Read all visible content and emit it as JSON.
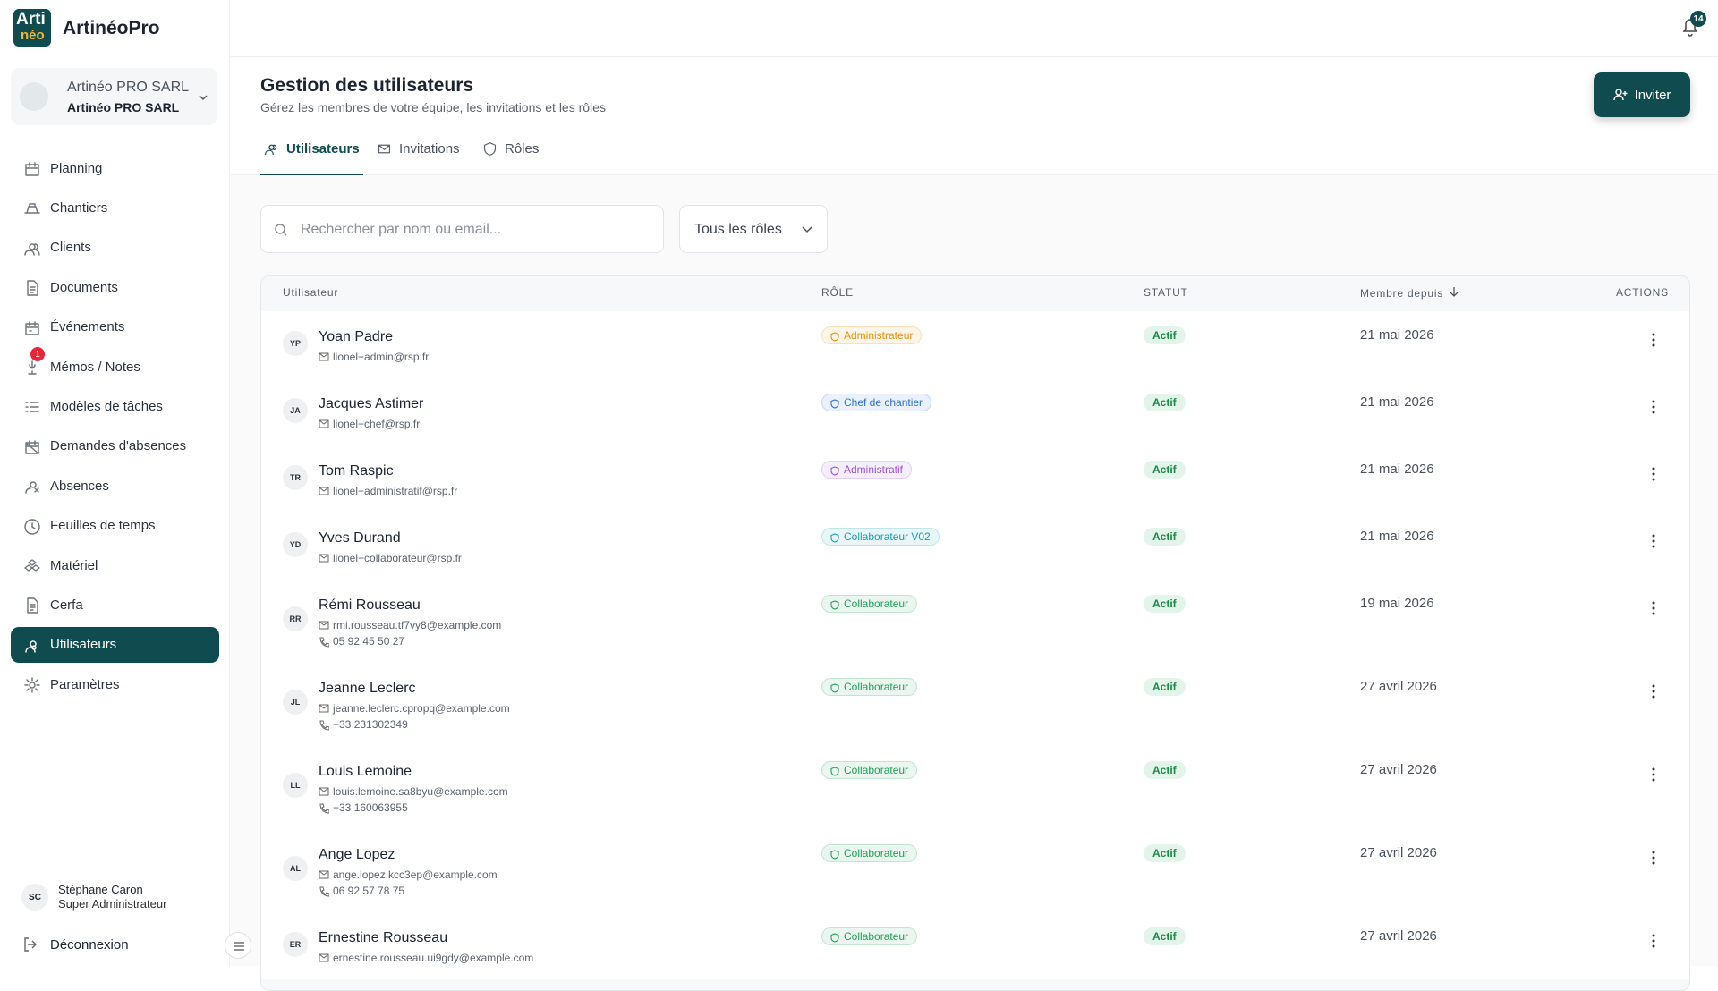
{
  "sidebar": {
    "logo": [
      "Arti",
      "néo"
    ],
    "brand": "ArtinéoPro",
    "company": {
      "name": "Artinéo PRO SARL",
      "subtitle": "Artinéo PRO SARL"
    },
    "nav": [
      {
        "label": "Planning"
      },
      {
        "label": "Chantiers"
      },
      {
        "label": "Clients"
      },
      {
        "label": "Documents"
      },
      {
        "label": "Événements"
      },
      {
        "label": "Mémos / Notes",
        "badge": 1
      },
      {
        "label": "Modèles de tâches"
      },
      {
        "label": "Demandes d'absences"
      },
      {
        "label": "Absences"
      },
      {
        "label": "Feuilles de temps"
      },
      {
        "label": "Matériel"
      },
      {
        "label": "Cerfa"
      },
      {
        "label": "Utilisateurs",
        "active": true
      },
      {
        "label": "Paramètres"
      }
    ],
    "user": {
      "initials": "SC",
      "name": "Stéphane Caron",
      "role": "Super Administrateur"
    },
    "logout": "Déconnexion"
  },
  "topbar": {
    "notifications": 14
  },
  "header": {
    "title": "Gestion des utilisateurs",
    "subtitle": "Gérez les membres de votre équipe, les invitations et les rôles",
    "invite": "Inviter"
  },
  "tabs": [
    {
      "label": "Utilisateurs",
      "active": true
    },
    {
      "label": "Invitations"
    },
    {
      "label": "Rôles"
    }
  ],
  "filters": {
    "search_placeholder": "Rechercher par nom ou email...",
    "role": "Tous les rôles"
  },
  "table": {
    "columns": [
      "Utilisateur",
      "RÔLE",
      "STATUT",
      "Membre depuis",
      "ACTIONS"
    ],
    "rows": [
      {
        "initials": "YP",
        "name": "Yoan Padre",
        "email": "lionel+admin@rsp.fr",
        "role": "Administrateur",
        "role_color": "#e8900c",
        "status": "Actif",
        "since": "21 mai 2026"
      },
      {
        "initials": "JA",
        "name": "Jacques Astimer",
        "email": "lionel+chef@rsp.fr",
        "role": "Chef de chantier",
        "role_color": "#2f6fd6",
        "status": "Actif",
        "since": "21 mai 2026"
      },
      {
        "initials": "TR",
        "name": "Tom Raspic",
        "email": "lionel+administratif@rsp.fr",
        "role": "Administratif",
        "role_color": "#9a55d6",
        "status": "Actif",
        "since": "21 mai 2026"
      },
      {
        "initials": "YD",
        "name": "Yves Durand",
        "email": "lionel+collaborateur@rsp.fr",
        "role": "Collaborateur V02",
        "role_color": "#1a9fb0",
        "status": "Actif",
        "since": "21 mai 2026"
      },
      {
        "initials": "RR",
        "name": "Rémi Rousseau",
        "email": "rmi.rousseau.tf7vy8@example.com",
        "phone": "05 92 45 50 27",
        "role": "Collaborateur",
        "role_color": "#22a05a",
        "status": "Actif",
        "since": "19 mai 2026"
      },
      {
        "initials": "JL",
        "name": "Jeanne Leclerc",
        "email": "jeanne.leclerc.cpropq@example.com",
        "phone": "+33 231302349",
        "role": "Collaborateur",
        "role_color": "#22a05a",
        "status": "Actif",
        "since": "27 avril 2026"
      },
      {
        "initials": "LL",
        "name": "Louis Lemoine",
        "email": "louis.lemoine.sa8byu@example.com",
        "phone": "+33 160063955",
        "role": "Collaborateur",
        "role_color": "#22a05a",
        "status": "Actif",
        "since": "27 avril 2026"
      },
      {
        "initials": "AL",
        "name": "Ange Lopez",
        "email": "ange.lopez.kcc3ep@example.com",
        "phone": "06 92 57 78 75",
        "role": "Collaborateur",
        "role_color": "#22a05a",
        "status": "Actif",
        "since": "27 avril 2026"
      },
      {
        "initials": "ER",
        "name": "Ernestine Rousseau",
        "email": "ernestine.rousseau.ui9gdy@example.com",
        "role": "Collaborateur",
        "role_color": "#22a05a",
        "status": "Actif",
        "since": "27 avril 2026"
      }
    ]
  }
}
